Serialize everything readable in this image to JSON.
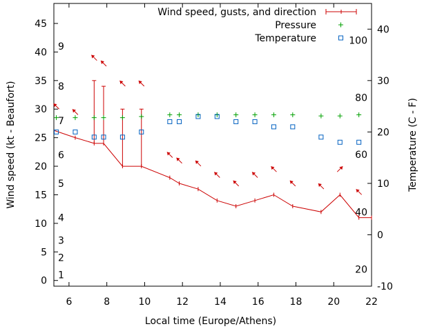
{
  "chart_data": {
    "type": "line",
    "title": "",
    "xlabel": "Local time (Europe/Athens)",
    "ylabel": "Wind speed (kt - Beaufort)",
    "y2label": "Temperature (C - F)",
    "xlim": [
      5.2,
      22
    ],
    "ylim": [
      -1,
      48.5
    ],
    "y2lim": [
      -10,
      45
    ],
    "x_ticks": [
      6,
      8,
      10,
      12,
      14,
      16,
      18,
      20,
      22
    ],
    "y_ticks": [
      0,
      5,
      10,
      15,
      20,
      25,
      30,
      35,
      40,
      45
    ],
    "y2_ticks": [
      -10,
      0,
      10,
      20,
      30,
      40
    ],
    "legend_position": "top-right",
    "legend": [
      "Wind speed, gusts, and direction",
      "Pressure",
      "Temperature"
    ],
    "beaufort_labels": [
      {
        "label": "1",
        "kt": 1
      },
      {
        "label": "2",
        "kt": 4
      },
      {
        "label": "3",
        "kt": 7
      },
      {
        "label": "4",
        "kt": 11
      },
      {
        "label": "5",
        "kt": 17
      },
      {
        "label": "6",
        "kt": 22
      },
      {
        "label": "7",
        "kt": 28
      },
      {
        "label": "8",
        "kt": 34
      },
      {
        "label": "9",
        "kt": 41
      }
    ],
    "fahrenheit_labels": [
      {
        "label": "20",
        "c": -6.7
      },
      {
        "label": "40",
        "c": 4.4
      },
      {
        "label": "60",
        "c": 15.6
      },
      {
        "label": "80",
        "c": 26.7
      },
      {
        "label": "100",
        "c": 37.8
      }
    ],
    "series": [
      {
        "name": "Wind speed, gusts, and direction",
        "color": "#cc0000",
        "x": [
          5.0,
          6.33,
          7.33,
          7.83,
          8.83,
          9.83,
          11.33,
          11.83,
          12.83,
          13.83,
          14.83,
          15.83,
          16.83,
          17.83,
          19.33,
          20.33,
          21.33,
          22.0
        ],
        "y": [
          26.5,
          25,
          24,
          24,
          20,
          20,
          18,
          17,
          16,
          14,
          13,
          14,
          15,
          13,
          12,
          15,
          11,
          11
        ],
        "gusts": [
          {
            "x": 7.33,
            "y": 35
          },
          {
            "x": 7.83,
            "y": 34
          },
          {
            "x": 8.83,
            "y": 30
          },
          {
            "x": 9.83,
            "y": 30
          }
        ]
      },
      {
        "name": "Pressure",
        "color": "#00a000",
        "x": [
          5.33,
          6.33,
          7.33,
          7.83,
          8.83,
          9.83,
          11.33,
          11.83,
          12.83,
          13.83,
          14.83,
          15.83,
          16.83,
          17.83,
          19.33,
          20.33,
          21.33
        ],
        "y": [
          28.5,
          28.5,
          28.5,
          28.5,
          28.5,
          28.7,
          29,
          29,
          29,
          29,
          29,
          29,
          29,
          29,
          28.8,
          28.8,
          29
        ]
      },
      {
        "name": "Temperature",
        "color": "#0060c0",
        "axis": "y2",
        "x": [
          5.33,
          6.33,
          7.33,
          7.83,
          8.83,
          9.83,
          11.33,
          11.83,
          12.83,
          13.83,
          14.83,
          15.83,
          16.83,
          17.83,
          19.33,
          20.33,
          21.33
        ],
        "y": [
          20,
          20,
          19,
          19,
          19,
          20,
          22,
          22,
          23,
          23,
          22,
          22,
          21,
          21,
          19,
          18,
          18
        ]
      }
    ],
    "wind_arrows": [
      {
        "x": 5.33,
        "y": 30.5,
        "dir": "nw"
      },
      {
        "x": 6.33,
        "y": 29.5,
        "dir": "nw"
      },
      {
        "x": 7.33,
        "y": 39,
        "dir": "nw"
      },
      {
        "x": 7.83,
        "y": 38,
        "dir": "nw"
      },
      {
        "x": 8.83,
        "y": 34.5,
        "dir": "nw"
      },
      {
        "x": 9.83,
        "y": 34.5,
        "dir": "nw"
      },
      {
        "x": 11.33,
        "y": 22,
        "dir": "nw"
      },
      {
        "x": 11.83,
        "y": 21,
        "dir": "nw"
      },
      {
        "x": 12.83,
        "y": 20.5,
        "dir": "nw"
      },
      {
        "x": 13.83,
        "y": 18.5,
        "dir": "nw"
      },
      {
        "x": 14.83,
        "y": 17,
        "dir": "nw"
      },
      {
        "x": 15.83,
        "y": 18.5,
        "dir": "nw"
      },
      {
        "x": 16.83,
        "y": 19.5,
        "dir": "nw"
      },
      {
        "x": 17.83,
        "y": 17,
        "dir": "nw"
      },
      {
        "x": 19.33,
        "y": 16.5,
        "dir": "nw"
      },
      {
        "x": 20.33,
        "y": 19.5,
        "dir": "ne"
      },
      {
        "x": 21.33,
        "y": 15.5,
        "dir": "nw"
      }
    ]
  }
}
